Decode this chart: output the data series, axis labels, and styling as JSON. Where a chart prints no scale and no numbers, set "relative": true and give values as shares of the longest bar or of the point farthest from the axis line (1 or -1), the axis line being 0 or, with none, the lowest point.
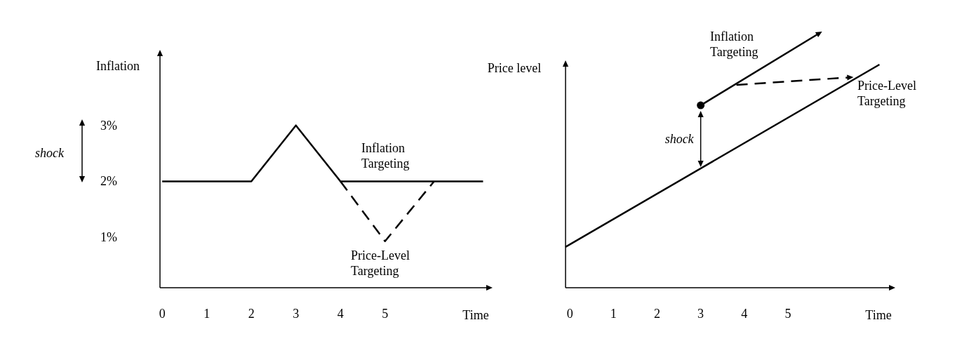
{
  "chart_data": [
    {
      "type": "line",
      "ylabel": "Inflation",
      "xlabel": "Time",
      "xlim": [
        -0.05,
        7.35
      ],
      "ylim": [
        0.1,
        4.3
      ],
      "xticks": [
        0,
        1,
        2,
        3,
        4,
        5
      ],
      "yticks": [
        {
          "value": 1,
          "label": "1%"
        },
        {
          "value": 2,
          "label": "2%"
        },
        {
          "value": 3,
          "label": "3%"
        }
      ],
      "grid": false,
      "annotations": [
        "shock"
      ],
      "series": [
        {
          "name": "Inflation Targeting",
          "color": "#000000",
          "x": [
            0,
            2,
            3,
            4,
            7.2
          ],
          "values": [
            2,
            2,
            3,
            2,
            2
          ],
          "line_style": "solid"
        },
        {
          "name": "Price-Level Targeting",
          "color": "#000000",
          "x": [
            4,
            5,
            6.1
          ],
          "values": [
            2,
            0.93,
            2
          ],
          "line_style": "dashed"
        }
      ]
    },
    {
      "type": "line",
      "ylabel": "Price level",
      "xlabel": "Time",
      "relative": true,
      "xlim": [
        -0.1,
        7.4
      ],
      "xticks": [
        0,
        1,
        2,
        3,
        4,
        5
      ],
      "tick_labels": "x",
      "grid": false,
      "annotations": [
        "shock"
      ],
      "series": [
        {
          "color": "#000000",
          "x": [
            -0.1,
            7.1
          ],
          "values": [
            0.16,
            0.876
          ],
          "line_style": "solid"
        },
        {
          "name": "Inflation Targeting",
          "color": "#000000",
          "x": [
            3,
            5.73
          ],
          "values": [
            0.716,
            1
          ],
          "line_style": "solid"
        },
        {
          "name": "Price-Level Targeting",
          "color": "#000000",
          "x": [
            3.82,
            6.44
          ],
          "values": [
            0.796,
            0.826
          ],
          "line_style": "dashed"
        },
        {
          "type": "scatter",
          "color": "#000000",
          "x": [
            3
          ],
          "values": [
            0.716
          ],
          "marker": "circle"
        }
      ]
    }
  ]
}
